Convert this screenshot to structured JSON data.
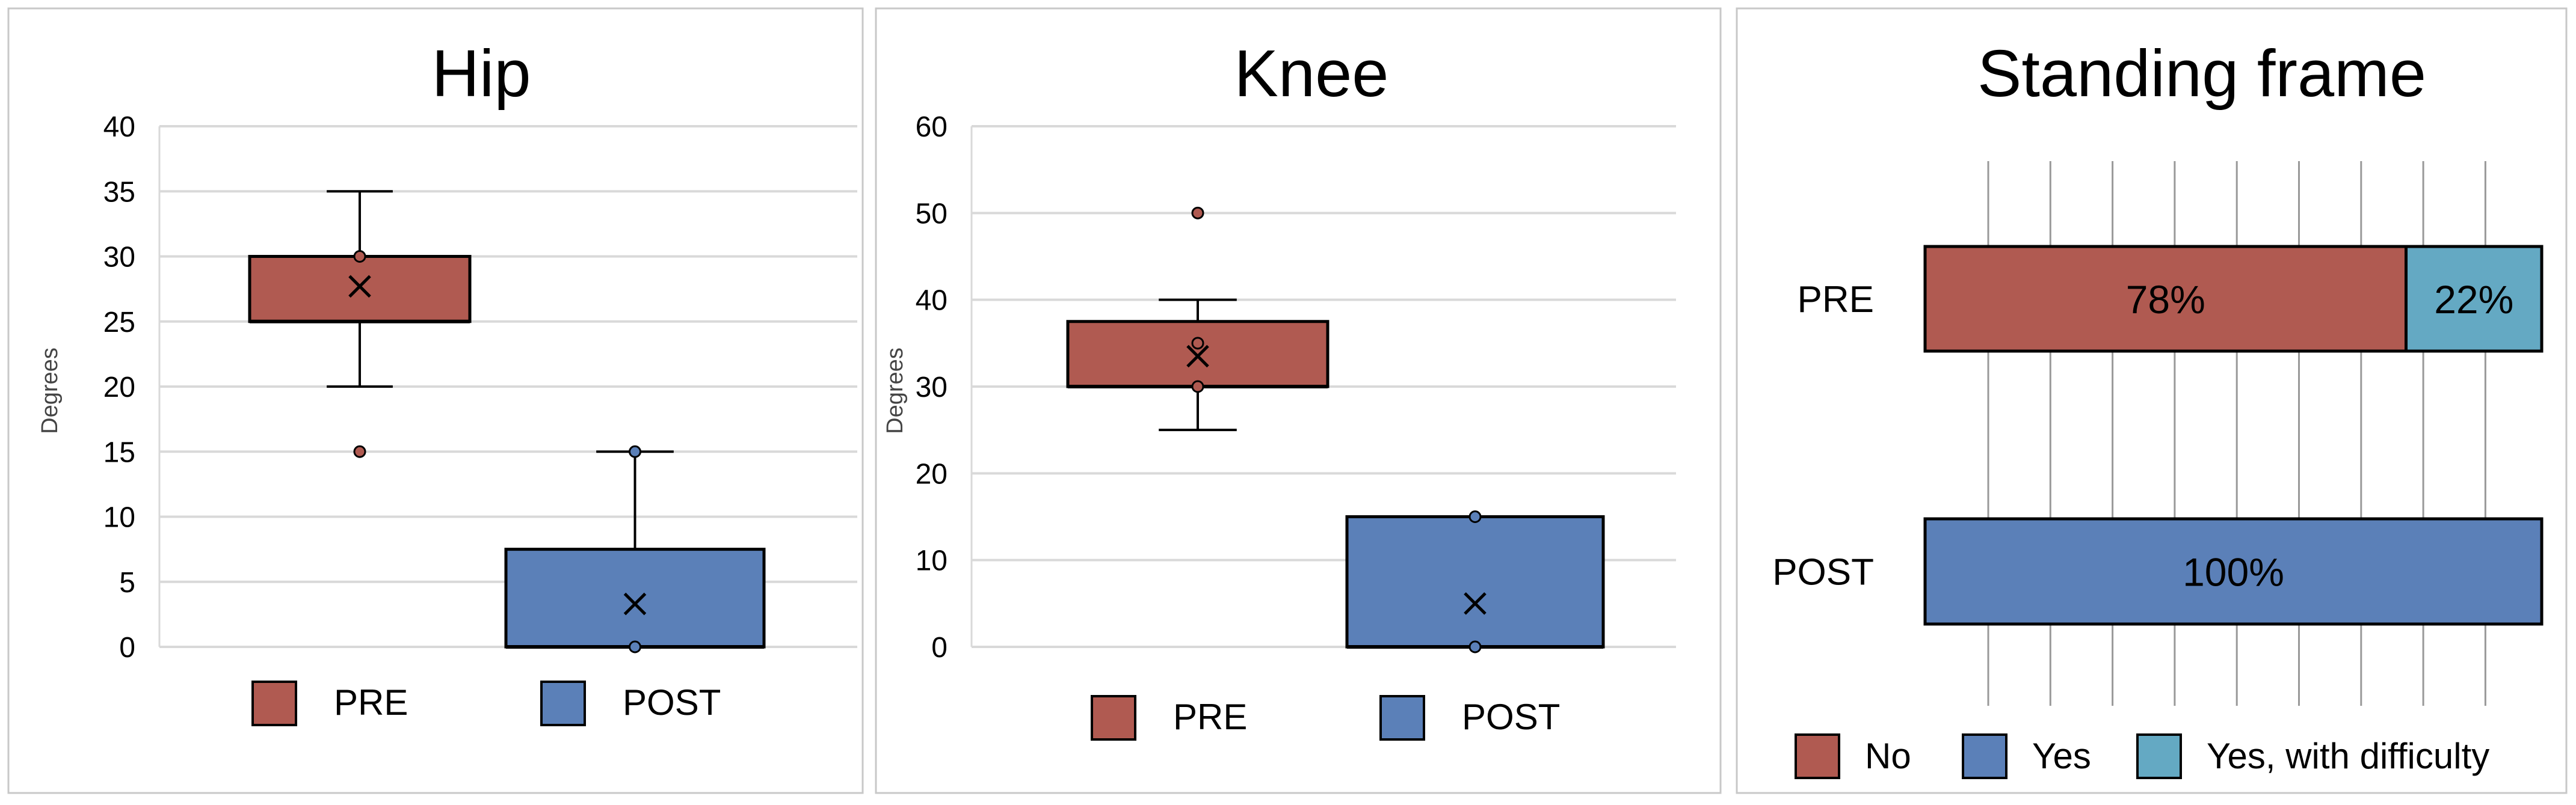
{
  "colors": {
    "pre": "#b05a51",
    "post": "#5b80b8",
    "difficulty": "#64a9c3",
    "grid": "#d9d9d9",
    "outline": "#000000"
  },
  "chart_data": [
    {
      "type": "box",
      "title": "Hip",
      "ylabel": "Degrees",
      "ylim": [
        0,
        40
      ],
      "yticks": [
        "0",
        "5",
        "10",
        "15",
        "20",
        "25",
        "30",
        "35",
        "40"
      ],
      "grid": true,
      "legend_position": "bottom",
      "series": [
        {
          "name": "PRE",
          "whisker_low": 20,
          "q1": 25,
          "median": 25,
          "q3": 30,
          "whisker_high": 35,
          "mean": 27.7,
          "points": [
            30
          ],
          "outliers": [
            15
          ]
        },
        {
          "name": "POST",
          "whisker_low": 0,
          "q1": 0,
          "median": 0,
          "q3": 7.5,
          "whisker_high": 15,
          "mean": 3.3,
          "points": [
            15,
            0
          ],
          "outliers": []
        }
      ]
    },
    {
      "type": "box",
      "title": "Knee",
      "ylabel": "Degrees",
      "ylim": [
        0,
        60
      ],
      "yticks": [
        "0",
        "10",
        "20",
        "30",
        "40",
        "50",
        "60"
      ],
      "grid": true,
      "legend_position": "bottom",
      "series": [
        {
          "name": "PRE",
          "whisker_low": 25,
          "q1": 30,
          "median": 30,
          "q3": 37.5,
          "whisker_high": 40,
          "mean": 33.5,
          "points": [
            35,
            30
          ],
          "outliers": [
            50
          ]
        },
        {
          "name": "POST",
          "whisker_low": 0,
          "q1": 0,
          "median": 0,
          "q3": 15,
          "whisker_high": 15,
          "mean": 5,
          "points": [
            15,
            0
          ],
          "outliers": []
        }
      ]
    },
    {
      "type": "bar",
      "orientation": "horizontal",
      "stacked": true,
      "title": "Standing frame",
      "categories": [
        "PRE",
        "POST"
      ],
      "xlim": [
        0,
        100
      ],
      "grid": true,
      "legend_position": "bottom",
      "series": [
        {
          "name": "No",
          "values": [
            78,
            0
          ],
          "labels": [
            "78%",
            ""
          ]
        },
        {
          "name": "Yes",
          "values": [
            0,
            100
          ],
          "labels": [
            "",
            "100%"
          ]
        },
        {
          "name": "Yes, with difficulty",
          "values": [
            22,
            0
          ],
          "labels": [
            "22%",
            ""
          ]
        }
      ]
    }
  ]
}
